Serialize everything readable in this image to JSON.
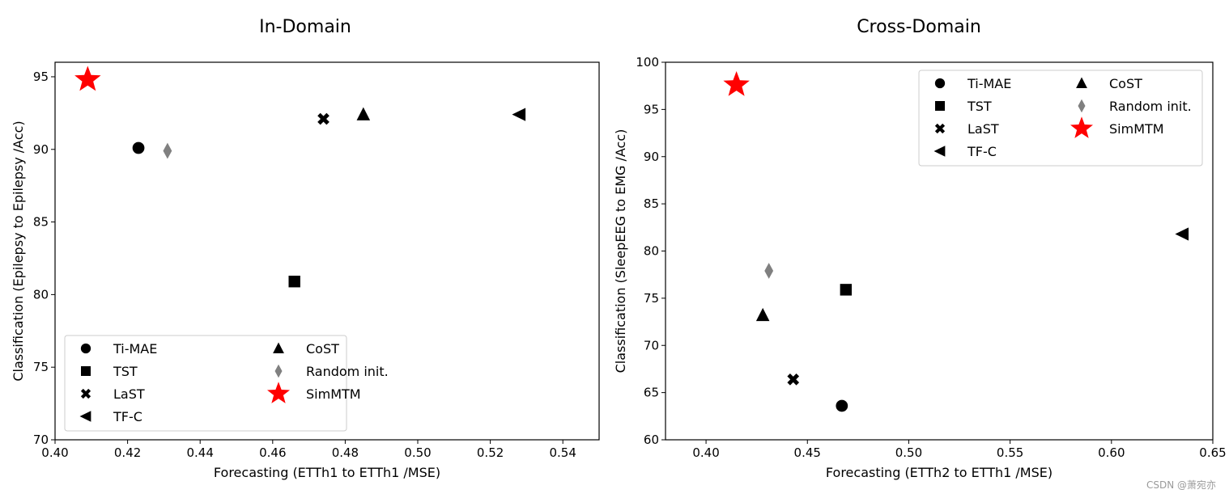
{
  "watermark": "CSDN @萧宛亦",
  "chart_data": [
    {
      "type": "scatter",
      "title": "In-Domain",
      "xlabel": "Forecasting (ETTh1 to ETTh1 /MSE)",
      "ylabel": "Classification (Epilepsy to Epilepsy /Acc)",
      "xlim": [
        0.4,
        0.55
      ],
      "ylim": [
        70,
        96
      ],
      "xticks": [
        "0.40",
        "0.42",
        "0.44",
        "0.46",
        "0.48",
        "0.50",
        "0.52",
        "0.54"
      ],
      "yticks": [
        "70",
        "75",
        "80",
        "85",
        "90",
        "95"
      ],
      "legend_position": "lower-left",
      "series": [
        {
          "name": "Ti-MAE",
          "marker": "circle",
          "color": "#000000",
          "x": 0.423,
          "y": 90.1
        },
        {
          "name": "TST",
          "marker": "square",
          "color": "#000000",
          "x": 0.466,
          "y": 80.9
        },
        {
          "name": "LaST",
          "marker": "x",
          "color": "#000000",
          "x": 0.474,
          "y": 92.1
        },
        {
          "name": "TF-C",
          "marker": "triangle-left",
          "color": "#000000",
          "x": 0.528,
          "y": 92.4
        },
        {
          "name": "CoST",
          "marker": "triangle-up",
          "color": "#000000",
          "x": 0.485,
          "y": 92.4
        },
        {
          "name": "Random init.",
          "marker": "diamond",
          "color": "#808080",
          "x": 0.431,
          "y": 89.9
        },
        {
          "name": "SimMTM",
          "marker": "star",
          "color": "#ff0000",
          "x": 0.409,
          "y": 94.8
        }
      ]
    },
    {
      "type": "scatter",
      "title": "Cross-Domain",
      "xlabel": "Forecasting (ETTh2 to ETTh1 /MSE)",
      "ylabel": "Classification (SleepEEG to EMG /Acc)",
      "xlim": [
        0.38,
        0.65
      ],
      "ylim": [
        60,
        100
      ],
      "xticks": [
        "0.40",
        "0.45",
        "0.50",
        "0.55",
        "0.60",
        "0.65"
      ],
      "yticks": [
        "60",
        "65",
        "70",
        "75",
        "80",
        "85",
        "90",
        "95",
        "100"
      ],
      "legend_position": "upper-right",
      "series": [
        {
          "name": "Ti-MAE",
          "marker": "circle",
          "color": "#000000",
          "x": 0.467,
          "y": 63.6
        },
        {
          "name": "TST",
          "marker": "square",
          "color": "#000000",
          "x": 0.469,
          "y": 75.9
        },
        {
          "name": "LaST",
          "marker": "x",
          "color": "#000000",
          "x": 0.443,
          "y": 66.4
        },
        {
          "name": "TF-C",
          "marker": "triangle-left",
          "color": "#000000",
          "x": 0.635,
          "y": 81.8
        },
        {
          "name": "CoST",
          "marker": "triangle-up",
          "color": "#000000",
          "x": 0.428,
          "y": 73.2
        },
        {
          "name": "Random init.",
          "marker": "diamond",
          "color": "#808080",
          "x": 0.431,
          "y": 77.9
        },
        {
          "name": "SimMTM",
          "marker": "star",
          "color": "#ff0000",
          "x": 0.415,
          "y": 97.6
        }
      ]
    }
  ]
}
